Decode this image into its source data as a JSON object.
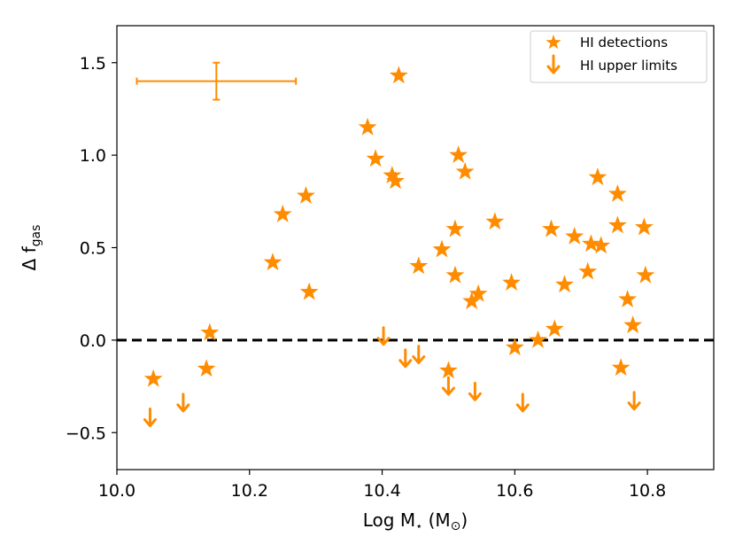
{
  "chart_data": {
    "type": "scatter",
    "title": "",
    "xlabel": "Log M⋆ (M⊙)",
    "ylabel": "Δ f_gas",
    "xlim": [
      10.0,
      10.9
    ],
    "ylim": [
      -0.7,
      1.7
    ],
    "grid": false,
    "legend_position": "top-right",
    "color": "#FF8C00",
    "x_ticks": [
      10.0,
      10.2,
      10.4,
      10.6,
      10.8
    ],
    "x_tick_labels": [
      "10.0",
      "10.2",
      "10.4",
      "10.6",
      "10.8"
    ],
    "y_ticks": [
      -0.5,
      0.0,
      0.5,
      1.0,
      1.5
    ],
    "y_tick_labels": [
      "−0.5",
      "0.0",
      "0.5",
      "1.0",
      "1.5"
    ],
    "reference_line": {
      "y": 0.0,
      "style": "dashed",
      "color": "#000000"
    },
    "error_bar": {
      "x": 10.15,
      "y": 1.4,
      "xerr": 0.12,
      "yerr": 0.1
    },
    "series": [
      {
        "name": "HI detections",
        "marker": "star",
        "points": [
          [
            10.055,
            -0.21
          ],
          [
            10.14,
            0.04
          ],
          [
            10.135,
            -0.155
          ],
          [
            10.235,
            0.42
          ],
          [
            10.25,
            0.68
          ],
          [
            10.285,
            0.78
          ],
          [
            10.29,
            0.26
          ],
          [
            10.378,
            1.15
          ],
          [
            10.39,
            0.98
          ],
          [
            10.415,
            0.89
          ],
          [
            10.42,
            0.86
          ],
          [
            10.425,
            1.43
          ],
          [
            10.455,
            0.4
          ],
          [
            10.49,
            0.49
          ],
          [
            10.5,
            -0.165
          ],
          [
            10.51,
            0.6
          ],
          [
            10.51,
            0.35
          ],
          [
            10.515,
            1.0
          ],
          [
            10.525,
            0.91
          ],
          [
            10.535,
            0.21
          ],
          [
            10.545,
            0.25
          ],
          [
            10.57,
            0.64
          ],
          [
            10.595,
            0.31
          ],
          [
            10.6,
            -0.04
          ],
          [
            10.635,
            0.0
          ],
          [
            10.655,
            0.6
          ],
          [
            10.66,
            0.06
          ],
          [
            10.675,
            0.3
          ],
          [
            10.69,
            0.56
          ],
          [
            10.71,
            0.37
          ],
          [
            10.715,
            0.52
          ],
          [
            10.725,
            0.88
          ],
          [
            10.73,
            0.51
          ],
          [
            10.755,
            0.79
          ],
          [
            10.755,
            0.62
          ],
          [
            10.76,
            -0.15
          ],
          [
            10.77,
            0.22
          ],
          [
            10.778,
            0.08
          ],
          [
            10.795,
            0.61
          ],
          [
            10.797,
            0.35
          ]
        ]
      },
      {
        "name": "HI upper limits",
        "marker": "down-arrow",
        "points": [
          [
            10.05,
            -0.42
          ],
          [
            10.1,
            -0.34
          ],
          [
            10.402,
            0.02
          ],
          [
            10.435,
            -0.1
          ],
          [
            10.455,
            -0.08
          ],
          [
            10.5,
            -0.25
          ],
          [
            10.54,
            -0.28
          ],
          [
            10.612,
            -0.34
          ],
          [
            10.78,
            -0.33
          ]
        ]
      }
    ]
  }
}
